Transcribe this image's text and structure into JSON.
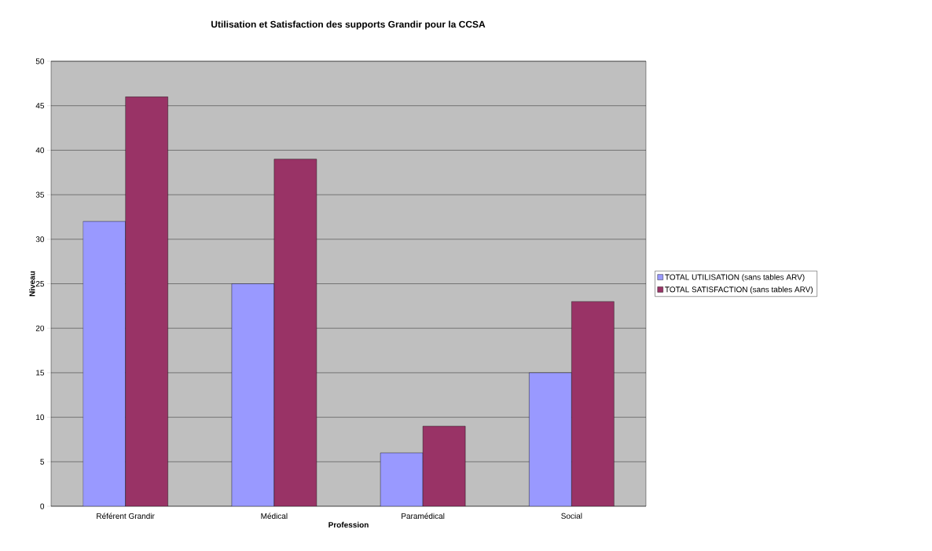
{
  "chart_data": {
    "type": "bar",
    "title": "Utilisation et Satisfaction des supports Grandir pour la CCSA",
    "xlabel": "Profession",
    "ylabel": "Niveau",
    "categories": [
      "Référent Grandir",
      "Médical",
      "Paramédical",
      "Social"
    ],
    "series": [
      {
        "name": "TOTAL UTILISATION (sans tables ARV)",
        "color": "#9999ff",
        "values": [
          32,
          25,
          6,
          15
        ]
      },
      {
        "name": "TOTAL SATISFACTION (sans tables ARV)",
        "color": "#993366",
        "values": [
          46,
          39,
          9,
          23
        ]
      }
    ],
    "ylim": [
      0,
      50
    ],
    "yticks": [
      0,
      5,
      10,
      15,
      20,
      25,
      30,
      35,
      40,
      45,
      50
    ],
    "grid": "y",
    "legend": "right"
  }
}
